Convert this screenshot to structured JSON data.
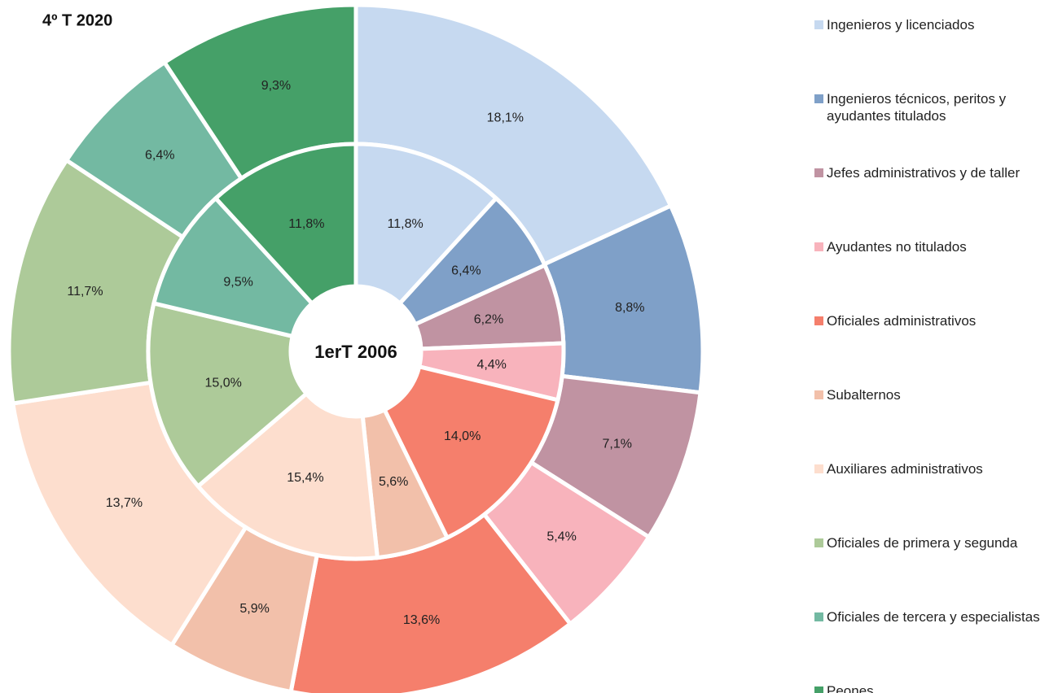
{
  "chart_data": {
    "type": "pie",
    "categories": [
      "Ingenieros y licenciados",
      "Ingenieros técnicos, peritos y ayudantes titulados",
      "Jefes administrativos y de taller",
      "Ayudantes no titulados",
      "Oficiales administrativos",
      "Subalternos",
      "Auxiliares administrativos",
      "Oficiales de primera y segunda",
      "Oficiales de tercera y especialistas",
      "Peones"
    ],
    "colors": [
      "#c6d9f0",
      "#7fa0c8",
      "#c093a2",
      "#f8b3bc",
      "#f57f6c",
      "#f2c0aa",
      "#fddece",
      "#adca99",
      "#73b9a2",
      "#45a068"
    ],
    "series": [
      {
        "name": "4º T 2020",
        "values": [
          18.1,
          8.8,
          7.1,
          5.4,
          13.6,
          5.9,
          13.7,
          11.7,
          6.4,
          9.3
        ],
        "value_labels": [
          "18,1%",
          "8,8%",
          "7,1%",
          "5,4%",
          "13,6%",
          "5,9%",
          "13,7%",
          "11,7%",
          "6,4%",
          "9,3%"
        ]
      },
      {
        "name": "1erT 2006",
        "values": [
          11.8,
          6.4,
          6.2,
          4.4,
          14.0,
          5.6,
          15.4,
          15.0,
          9.5,
          11.8
        ],
        "value_labels": [
          "11,8%",
          "6,4%",
          "6,2%",
          "4,4%",
          "14,0%",
          "5,6%",
          "15,4%",
          "15,0%",
          "9,5%",
          "11,8%"
        ]
      }
    ]
  }
}
